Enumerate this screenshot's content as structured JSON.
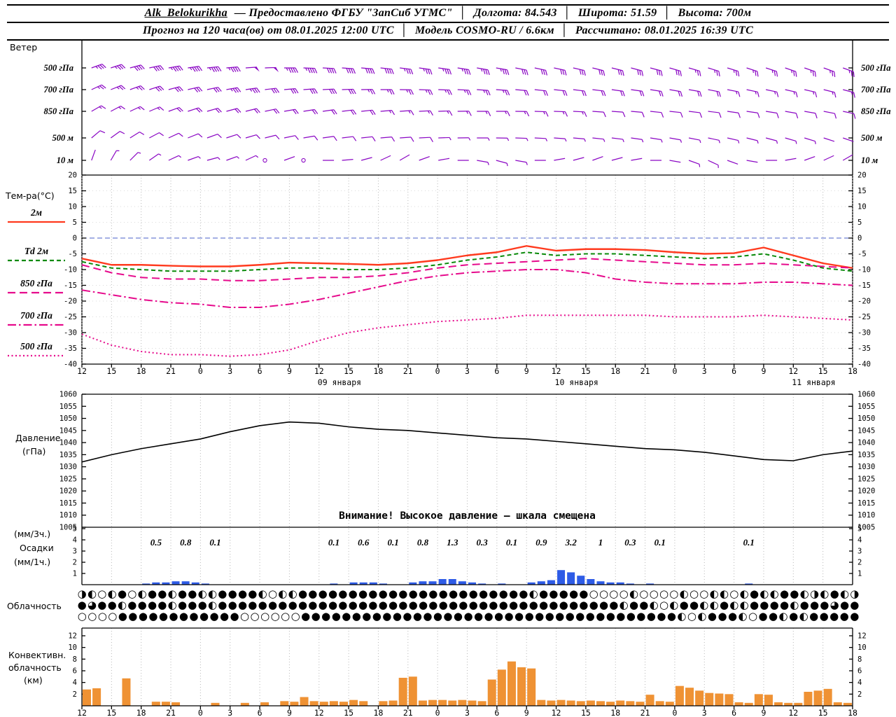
{
  "header": {
    "station": "Alk_Belokurikha",
    "provider": "— Предоставлено ФГБУ \"ЗапСиб УГМС\"",
    "sep": "│",
    "longitude": "Долгота: 84.543",
    "latitude": "Широта: 51.59",
    "altitude": "Высота: 700м",
    "forecast": "Прогноз на 120 часа(ов) от 08.01.2025 12:00 UTC",
    "model": "Модель COSMO-RU / 6.6км",
    "computed": "Рассчитано: 08.01.2025 16:39 UTC"
  },
  "x_axis": {
    "hour_labels": [
      "12",
      "15",
      "18",
      "21",
      "0",
      "3",
      "6",
      "9",
      "12",
      "15",
      "18",
      "21",
      "0",
      "3",
      "6",
      "9",
      "12",
      "15",
      "18",
      "21",
      "0",
      "3",
      "6",
      "9",
      "12",
      "15",
      "18"
    ],
    "date_labels": [
      {
        "label": "09 января",
        "tick": 8
      },
      {
        "label": "10 января",
        "tick": 16
      },
      {
        "label": "11 января",
        "tick": 24
      }
    ]
  },
  "chart_data": [
    {
      "id": "wind",
      "type": "wind-barbs",
      "label": "Ветер",
      "color": "#8a06c4",
      "rows": [
        {
          "label": "500 гПа",
          "dirs": [
            250,
            252,
            255,
            258,
            260,
            262,
            264,
            265,
            266,
            268,
            270,
            272,
            273,
            274,
            275,
            276,
            277,
            278,
            278,
            279,
            280,
            280,
            281,
            282,
            282,
            283,
            284,
            284,
            285,
            285,
            286,
            286,
            287,
            287,
            288,
            288,
            289,
            289,
            290,
            290
          ],
          "speeds": [
            35,
            38,
            40,
            42,
            45,
            45,
            47,
            48,
            50,
            50,
            48,
            45,
            44,
            42,
            40,
            40,
            38,
            38,
            37,
            36,
            35,
            35,
            34,
            34,
            33,
            33,
            32,
            32,
            31,
            30,
            30,
            29,
            29,
            28,
            28,
            27,
            27,
            26,
            26,
            25
          ]
        },
        {
          "label": "700 гПа",
          "dirs": [
            245,
            248,
            250,
            252,
            255,
            257,
            258,
            260,
            262,
            263,
            265,
            266,
            267,
            268,
            269,
            270,
            271,
            272,
            272,
            273,
            274,
            274,
            275,
            276,
            276,
            277,
            277,
            278,
            278,
            279,
            280,
            280,
            281,
            281,
            282,
            282,
            283,
            283,
            284,
            285
          ],
          "speeds": [
            25,
            27,
            28,
            30,
            32,
            33,
            34,
            35,
            35,
            34,
            33,
            32,
            31,
            30,
            29,
            28,
            28,
            27,
            26,
            26,
            25,
            25,
            24,
            24,
            23,
            23,
            22,
            22,
            21,
            21,
            20,
            20,
            20,
            19,
            19,
            18,
            18,
            17,
            17,
            16
          ]
        },
        {
          "label": "850 гПа",
          "dirs": [
            240,
            242,
            245,
            247,
            250,
            252,
            254,
            255,
            256,
            258,
            260,
            261,
            262,
            263,
            264,
            265,
            266,
            267,
            268,
            269,
            270,
            270,
            271,
            272,
            272,
            273,
            274,
            274,
            275,
            276,
            276,
            277,
            277,
            278,
            278,
            279,
            280,
            280,
            281,
            282
          ],
          "speeds": [
            15,
            16,
            18,
            19,
            20,
            21,
            22,
            22,
            23,
            23,
            22,
            22,
            21,
            20,
            20,
            19,
            19,
            18,
            18,
            17,
            17,
            16,
            16,
            15,
            15,
            15,
            14,
            14,
            14,
            13,
            13,
            13,
            12,
            12,
            12,
            11,
            11,
            11,
            10,
            10
          ]
        },
        {
          "label": "500 м",
          "dirs": [
            230,
            234,
            238,
            242,
            245,
            248,
            250,
            252,
            254,
            256,
            258,
            260,
            262,
            263,
            264,
            265,
            266,
            267,
            268,
            269,
            270,
            271,
            272,
            273,
            274,
            275,
            276,
            277,
            278,
            279,
            280,
            281,
            282,
            283,
            284,
            285,
            286,
            287,
            288,
            289
          ],
          "speeds": [
            10,
            11,
            12,
            12,
            13,
            13,
            14,
            14,
            14,
            13,
            13,
            12,
            12,
            11,
            11,
            10,
            10,
            10,
            9,
            9,
            9,
            8,
            8,
            8,
            8,
            7,
            7,
            7,
            7,
            6,
            6,
            6,
            6,
            5,
            5,
            5,
            5,
            5,
            4,
            4
          ]
        },
        {
          "label": "10 м",
          "dirs": [
            200,
            210,
            225,
            235,
            245,
            250,
            255,
            250,
            245,
            240,
            250,
            260,
            270,
            265,
            255,
            245,
            240,
            250,
            260,
            270,
            280,
            285,
            280,
            270,
            260,
            255,
            250,
            255,
            260,
            270,
            280,
            290,
            295,
            290,
            280,
            270,
            260,
            250,
            245,
            240
          ],
          "speeds": [
            4,
            5,
            5,
            6,
            6,
            7,
            7,
            6,
            6,
            0,
            2,
            0,
            4,
            4,
            4,
            3,
            3,
            3,
            4,
            4,
            5,
            5,
            5,
            4,
            4,
            3,
            3,
            3,
            4,
            4,
            4,
            5,
            5,
            4,
            4,
            3,
            3,
            3,
            2,
            2
          ]
        }
      ]
    },
    {
      "id": "temperature",
      "type": "line",
      "label": "Тем-ра(°C)",
      "ylim": [
        -40,
        20
      ],
      "ytick_step": 5,
      "zero_line_color": "#4a5fc8",
      "series": [
        {
          "name": "2м",
          "color": "#ff3a1e",
          "dash": "solid",
          "values": [
            -6.5,
            -8.5,
            -8.5,
            -8.8,
            -9,
            -9,
            -8.5,
            -7.8,
            -8,
            -8.2,
            -8.5,
            -8,
            -7,
            -5.5,
            -4.5,
            -2.5,
            -4,
            -3.5,
            -3.5,
            -3.8,
            -4.5,
            -5,
            -4.8,
            -3,
            -5.5,
            -8,
            -9.5
          ]
        },
        {
          "name": "Td 2м",
          "color": "#0a8a0a",
          "dash": "dashed",
          "values": [
            -7.5,
            -9.5,
            -10,
            -10.5,
            -10.5,
            -10.5,
            -10,
            -9.5,
            -9.5,
            -10,
            -10,
            -9.5,
            -8.5,
            -7,
            -6,
            -4.5,
            -5.5,
            -5,
            -5,
            -5.5,
            -6,
            -6.5,
            -6,
            -5,
            -7,
            -9.5,
            -10.5
          ]
        },
        {
          "name": "850 гПа",
          "color": "#e60a8c",
          "dash": "longdash",
          "values": [
            -8.5,
            -11,
            -12.5,
            -13,
            -13,
            -13.5,
            -13.5,
            -13,
            -12.5,
            -12.5,
            -12,
            -11,
            -9.5,
            -8.5,
            -8,
            -7.5,
            -7,
            -6.5,
            -7,
            -7.5,
            -8,
            -8.5,
            -8.5,
            -8,
            -8.5,
            -9,
            -9.5
          ]
        },
        {
          "name": "700 гПа",
          "color": "#e60a8c",
          "dash": "dashdot",
          "values": [
            -16.5,
            -18,
            -19.5,
            -20.5,
            -21,
            -22,
            -22,
            -21,
            -19.5,
            -17.5,
            -15.5,
            -13.5,
            -12,
            -11,
            -10.5,
            -10,
            -10,
            -11,
            -13,
            -14,
            -14.5,
            -14.5,
            -14.5,
            -14,
            -14,
            -14.5,
            -15
          ]
        },
        {
          "name": "500 гПа",
          "color": "#e60a8c",
          "dash": "dotted",
          "values": [
            -30.5,
            -34,
            -36,
            -37,
            -37,
            -37.5,
            -37,
            -35.5,
            -32.5,
            -30,
            -28.5,
            -27.5,
            -26.5,
            -26,
            -25.5,
            -24.5,
            -24.5,
            -24.5,
            -24.5,
            -24.5,
            -25,
            -25,
            -25,
            -24.5,
            -25,
            -25.5,
            -26
          ]
        }
      ]
    },
    {
      "id": "pressure",
      "type": "line",
      "label_lines": [
        "Давление",
        "(гПа)"
      ],
      "ylim": [
        1005,
        1060
      ],
      "ytick_step": 5,
      "color": "#000000",
      "warning": "Внимание! Высокое давление — шкала смещена",
      "values": [
        1032,
        1035,
        1037.5,
        1039.5,
        1041.5,
        1044.5,
        1047,
        1048.5,
        1048,
        1046.5,
        1045.5,
        1045,
        1044,
        1043,
        1042,
        1041.5,
        1040.5,
        1039.5,
        1038.5,
        1037.5,
        1037,
        1036,
        1034.5,
        1033,
        1032.5,
        1035,
        1036.5
      ]
    },
    {
      "id": "precip",
      "type": "bar",
      "label_lines": [
        "(мм/3ч.)",
        "Осадки",
        "(мм/1ч.)"
      ],
      "ylim": [
        0,
        5
      ],
      "bar_color": "#2e5be6",
      "labels_3h": [
        {
          "interval": 2,
          "value": "0.5"
        },
        {
          "interval": 3,
          "value": "0.8"
        },
        {
          "interval": 4,
          "value": "0.1"
        },
        {
          "interval": 8,
          "value": "0.1"
        },
        {
          "interval": 9,
          "value": "0.6"
        },
        {
          "interval": 10,
          "value": "0.1"
        },
        {
          "interval": 11,
          "value": "0.8"
        },
        {
          "interval": 12,
          "value": "1.3"
        },
        {
          "interval": 13,
          "value": "0.3"
        },
        {
          "interval": 14,
          "value": "0.1"
        },
        {
          "interval": 15,
          "value": "0.9"
        },
        {
          "interval": 16,
          "value": "3.2"
        },
        {
          "interval": 17,
          "value": "1"
        },
        {
          "interval": 18,
          "value": "0.3"
        },
        {
          "interval": 19,
          "value": "0.1"
        },
        {
          "interval": 22,
          "value": "0.1"
        }
      ],
      "bars_1h": [
        0,
        0,
        0,
        0,
        0,
        0,
        0.1,
        0.2,
        0.2,
        0.3,
        0.3,
        0.2,
        0.1,
        0,
        0,
        0,
        0,
        0,
        0,
        0,
        0,
        0,
        0,
        0,
        0,
        0.1,
        0,
        0.2,
        0.2,
        0.2,
        0.1,
        0,
        0,
        0.2,
        0.3,
        0.3,
        0.5,
        0.5,
        0.3,
        0.2,
        0.1,
        0,
        0.1,
        0,
        0,
        0.2,
        0.3,
        0.4,
        1.3,
        1.1,
        0.8,
        0.5,
        0.3,
        0.2,
        0.2,
        0.1,
        0,
        0.1,
        0,
        0,
        0,
        0,
        0,
        0,
        0,
        0,
        0,
        0.1,
        0,
        0,
        0,
        0,
        0,
        0,
        0,
        0,
        0,
        0
      ]
    },
    {
      "id": "cloud",
      "type": "symbol-rows",
      "label": "Облачность",
      "rows": [
        "◑◐○◐●○◐●●◐●●◐◐●●●●◐○◐◐●●●●●●●●●●●●●●●●●●●●●●●◐●●●●●○○○○◐○○○○◐○○◐◐○◐●◐◐●●◐◑◐●◐◑",
        "●◕●●◐●●●●◐●●●◐●●●●●●●●●●●●●●●●●●●●●●●●●●●●●●●●●●●●●●●●◐●●◐○◐●●◐◐●◐◐●●●●◐●●●◕●●",
        "○○○○●●●●●●●●●●●●○○○○○○●●●●●●●●●●●●●●●●●●●●●●●●●●●●●●●●●●●●●◐○◐●●●◐○●●◐●◐●●●●●"
      ]
    },
    {
      "id": "convective",
      "type": "bar",
      "label_lines": [
        "Конвективн.",
        "облачность",
        "(км)"
      ],
      "ylim": [
        0,
        12
      ],
      "ytick_step": 2,
      "bar_color": "#ef9234",
      "bars_1h": [
        2.8,
        3,
        0,
        0,
        4.7,
        0,
        0,
        0.7,
        0.7,
        0.6,
        0,
        0,
        0,
        0.5,
        0,
        0,
        0.5,
        0,
        0.6,
        0,
        0.8,
        0.7,
        1.5,
        0.8,
        0.7,
        0.8,
        0.7,
        1,
        0.8,
        0,
        0.8,
        0.9,
        4.8,
        5,
        0.9,
        1,
        1,
        0.9,
        1,
        0.9,
        0.8,
        4.5,
        6.2,
        7.6,
        6.6,
        6.4,
        1,
        0.9,
        1,
        0.9,
        0.8,
        0.9,
        0.8,
        0.7,
        0.9,
        0.8,
        0.7,
        1.9,
        0.8,
        0.7,
        3.4,
        3.1,
        2.6,
        2.2,
        2.1,
        2,
        0.6,
        0.5,
        2,
        1.9,
        0.6,
        0.5,
        0.5,
        2.4,
        2.6,
        2.9,
        0.6,
        0.5
      ]
    }
  ]
}
